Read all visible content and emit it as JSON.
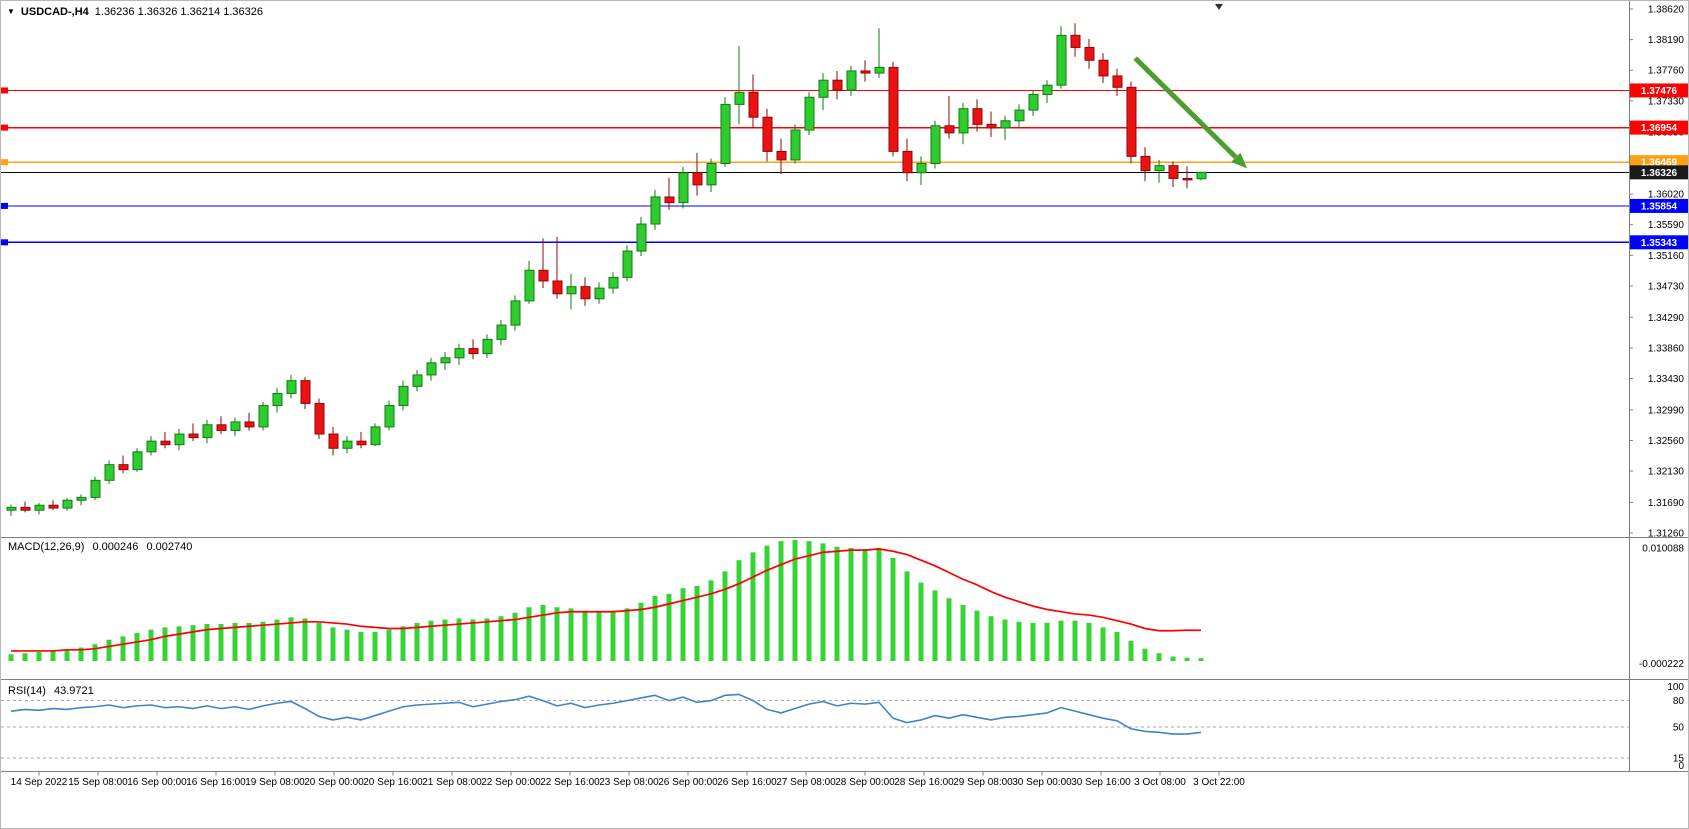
{
  "window": {
    "dropdown_icon": "▼",
    "symbol_timeframe": "USDCAD-,H4",
    "ohlc": "1.36236 1.36326 1.36214 1.36326"
  },
  "colors": {
    "background": "#ffffff",
    "up_body": "#2ecc2e",
    "up_border": "#127a12",
    "down_body": "#ea1212",
    "down_border": "#8f0808",
    "macd_hist": "#35d435",
    "macd_signal": "#ff0000",
    "rsi_line": "#3d85c8",
    "resistance": "#ff0000",
    "pivot": "#ffa013",
    "support": "#0000ff",
    "current_price_line": "#000000",
    "current_price_tag_bg": "#1a1a1a",
    "arrow": "#4e9d2f",
    "separator": "#7f7f7f",
    "axis_text": "#000000",
    "level_dash": "#a8a8a8"
  },
  "price_axis_ticks": [
    "1.38620",
    "1.38190",
    "1.37760",
    "1.37330",
    "1.36890",
    "1.36460",
    "1.36020",
    "1.35590",
    "1.35160",
    "1.34730",
    "1.34290",
    "1.33860",
    "1.33430",
    "1.32990",
    "1.32560",
    "1.32130",
    "1.31690",
    "1.31260"
  ],
  "time_axis_labels": [
    "14 Sep 2022",
    "15 Sep 08:00",
    "16 Sep 00:00",
    "16 Sep 16:00",
    "19 Sep 08:00",
    "20 Sep 00:00",
    "20 Sep 16:00",
    "21 Sep 08:00",
    "22 Sep 00:00",
    "22 Sep 16:00",
    "23 Sep 08:00",
    "26 Sep 00:00",
    "26 Sep 16:00",
    "27 Sep 08:00",
    "28 Sep 00:00",
    "28 Sep 16:00",
    "29 Sep 08:00",
    "30 Sep 00:00",
    "30 Sep 16:00",
    "3 Oct 08:00",
    "3 Oct 22:00"
  ],
  "hlines": [
    {
      "label": "1.37476",
      "price": 1.37476,
      "color": "#ff0000"
    },
    {
      "label": "1.36954",
      "price": 1.36954,
      "color": "#ff0000"
    },
    {
      "label": "1.36469",
      "price": 1.36469,
      "color": "#ffa013"
    },
    {
      "label": "1.35854",
      "price": 1.35854,
      "color": "#0000ff"
    },
    {
      "label": "1.35343",
      "price": 1.35343,
      "color": "#0000ff"
    }
  ],
  "current_price": {
    "label": "1.36326",
    "price": 1.36326
  },
  "indicators": {
    "macd": {
      "name": "MACD(12,26,9)",
      "value": "0.000246",
      "signal_value": "0.002740",
      "axis_max": "0.010088",
      "axis_min": "-0.000222"
    },
    "rsi": {
      "name": "RSI(14)",
      "value": "43.9721",
      "axis_labels": [
        "100",
        "80",
        "50",
        "15",
        "0"
      ],
      "levels": [
        80,
        50,
        15
      ]
    }
  },
  "annotations": {
    "trend_arrow": {
      "from_bar": 80.3,
      "from_price": 1.3793,
      "to_bar": 88.3,
      "to_price": 1.3638
    }
  },
  "chart_data": [
    {
      "type": "candlestick",
      "title": "USDCAD- H4 price pane",
      "x_range": "H4 bars, 14 Sep 2022 00:00 - 3 Oct 2022 22:00",
      "ylim": [
        1.3126,
        1.3862
      ],
      "candles_format": [
        "open",
        "high",
        "low",
        "close"
      ],
      "candles": [
        [
          1.3158,
          1.3166,
          1.315,
          1.3162
        ],
        [
          1.3162,
          1.317,
          1.3155,
          1.3158
        ],
        [
          1.3158,
          1.3168,
          1.3152,
          1.3165
        ],
        [
          1.3165,
          1.3172,
          1.3158,
          1.3161
        ],
        [
          1.3161,
          1.3175,
          1.3157,
          1.3172
        ],
        [
          1.3172,
          1.318,
          1.3165,
          1.3176
        ],
        [
          1.3176,
          1.3205,
          1.3172,
          1.32
        ],
        [
          1.32,
          1.3228,
          1.3195,
          1.3222
        ],
        [
          1.3222,
          1.3235,
          1.321,
          1.3215
        ],
        [
          1.3215,
          1.3245,
          1.3212,
          1.324
        ],
        [
          1.324,
          1.3262,
          1.3235,
          1.3255
        ],
        [
          1.3255,
          1.3268,
          1.3245,
          1.325
        ],
        [
          1.325,
          1.3272,
          1.3242,
          1.3265
        ],
        [
          1.3265,
          1.328,
          1.3255,
          1.326
        ],
        [
          1.326,
          1.3285,
          1.3252,
          1.3278
        ],
        [
          1.3278,
          1.329,
          1.3265,
          1.327
        ],
        [
          1.327,
          1.3288,
          1.3262,
          1.3282
        ],
        [
          1.3282,
          1.3295,
          1.327,
          1.3275
        ],
        [
          1.3275,
          1.331,
          1.327,
          1.3305
        ],
        [
          1.3305,
          1.333,
          1.3295,
          1.3322
        ],
        [
          1.3322,
          1.3348,
          1.3315,
          1.334
        ],
        [
          1.334,
          1.3345,
          1.33,
          1.3308
        ],
        [
          1.3308,
          1.3315,
          1.3258,
          1.3265
        ],
        [
          1.3265,
          1.3275,
          1.3235,
          1.3245
        ],
        [
          1.3245,
          1.3262,
          1.3238,
          1.3255
        ],
        [
          1.3255,
          1.3268,
          1.3245,
          1.325
        ],
        [
          1.325,
          1.328,
          1.3248,
          1.3275
        ],
        [
          1.3275,
          1.3312,
          1.327,
          1.3305
        ],
        [
          1.3305,
          1.334,
          1.3298,
          1.3332
        ],
        [
          1.3332,
          1.3355,
          1.3325,
          1.3348
        ],
        [
          1.3348,
          1.3372,
          1.334,
          1.3365
        ],
        [
          1.3365,
          1.338,
          1.3355,
          1.3372
        ],
        [
          1.3372,
          1.3392,
          1.3362,
          1.3385
        ],
        [
          1.3385,
          1.3398,
          1.337,
          1.3378
        ],
        [
          1.3378,
          1.3405,
          1.3372,
          1.3398
        ],
        [
          1.3398,
          1.3425,
          1.339,
          1.3418
        ],
        [
          1.3418,
          1.346,
          1.341,
          1.3452
        ],
        [
          1.3452,
          1.3508,
          1.3448,
          1.3495
        ],
        [
          1.3495,
          1.354,
          1.347,
          1.348
        ],
        [
          1.348,
          1.3542,
          1.3455,
          1.3462
        ],
        [
          1.3462,
          1.349,
          1.344,
          1.3472
        ],
        [
          1.3472,
          1.3485,
          1.3445,
          1.3455
        ],
        [
          1.3455,
          1.3478,
          1.3448,
          1.347
        ],
        [
          1.347,
          1.3492,
          1.3462,
          1.3485
        ],
        [
          1.3485,
          1.353,
          1.348,
          1.3522
        ],
        [
          1.3522,
          1.357,
          1.3515,
          1.356
        ],
        [
          1.356,
          1.3608,
          1.3552,
          1.3598
        ],
        [
          1.3598,
          1.3625,
          1.358,
          1.359
        ],
        [
          1.359,
          1.364,
          1.3582,
          1.3632
        ],
        [
          1.3632,
          1.366,
          1.36,
          1.3615
        ],
        [
          1.3615,
          1.3652,
          1.3605,
          1.3645
        ],
        [
          1.3645,
          1.3738,
          1.364,
          1.3728
        ],
        [
          1.3728,
          1.381,
          1.37,
          1.3745
        ],
        [
          1.3745,
          1.377,
          1.3695,
          1.371
        ],
        [
          1.371,
          1.3722,
          1.3648,
          1.3662
        ],
        [
          1.3662,
          1.368,
          1.363,
          1.365
        ],
        [
          1.365,
          1.37,
          1.3645,
          1.3692
        ],
        [
          1.3692,
          1.3745,
          1.3685,
          1.3738
        ],
        [
          1.3738,
          1.3772,
          1.372,
          1.3762
        ],
        [
          1.3762,
          1.3775,
          1.3735,
          1.3748
        ],
        [
          1.3748,
          1.3782,
          1.374,
          1.3775
        ],
        [
          1.3775,
          1.379,
          1.376,
          1.3772
        ],
        [
          1.3772,
          1.3835,
          1.3765,
          1.378
        ],
        [
          1.378,
          1.3788,
          1.3655,
          1.3662
        ],
        [
          1.3662,
          1.368,
          1.362,
          1.3632
        ],
        [
          1.3632,
          1.3655,
          1.3615,
          1.3645
        ],
        [
          1.3645,
          1.3705,
          1.3638,
          1.3698
        ],
        [
          1.3698,
          1.374,
          1.368,
          1.3688
        ],
        [
          1.3688,
          1.373,
          1.3672,
          1.3722
        ],
        [
          1.3722,
          1.3735,
          1.369,
          1.37
        ],
        [
          1.37,
          1.3718,
          1.3682,
          1.3695
        ],
        [
          1.3695,
          1.3712,
          1.3678,
          1.3705
        ],
        [
          1.3705,
          1.3728,
          1.3695,
          1.372
        ],
        [
          1.372,
          1.3748,
          1.3712,
          1.3742
        ],
        [
          1.3742,
          1.3762,
          1.373,
          1.3755
        ],
        [
          1.3755,
          1.3838,
          1.375,
          1.3825
        ],
        [
          1.3825,
          1.3842,
          1.3795,
          1.3808
        ],
        [
          1.3808,
          1.382,
          1.3778,
          1.379
        ],
        [
          1.379,
          1.38,
          1.3758,
          1.3768
        ],
        [
          1.3768,
          1.3778,
          1.374,
          1.3752
        ],
        [
          1.3752,
          1.376,
          1.3645,
          1.3655
        ],
        [
          1.3655,
          1.3668,
          1.362,
          1.3635
        ],
        [
          1.3635,
          1.365,
          1.3618,
          1.3642
        ],
        [
          1.3642,
          1.3648,
          1.3612,
          1.3624
        ],
        [
          1.3624,
          1.3641,
          1.361,
          1.36236
        ],
        [
          1.36236,
          1.36326,
          1.36214,
          1.36326
        ]
      ]
    },
    {
      "type": "bar",
      "name": "MACD(12,26,9)",
      "ylim": [
        -0.000222,
        0.010088
      ],
      "values": [
        0.0006,
        0.0007,
        0.0008,
        0.0009,
        0.001,
        0.0012,
        0.0015,
        0.0019,
        0.0022,
        0.0025,
        0.0028,
        0.003,
        0.0031,
        0.0032,
        0.0033,
        0.0033,
        0.0034,
        0.0034,
        0.0035,
        0.0037,
        0.0039,
        0.0038,
        0.0034,
        0.003,
        0.0028,
        0.0026,
        0.0026,
        0.0028,
        0.0031,
        0.0034,
        0.0036,
        0.0037,
        0.0038,
        0.0037,
        0.0038,
        0.004,
        0.0043,
        0.0048,
        0.005,
        0.0048,
        0.0047,
        0.0045,
        0.0044,
        0.0045,
        0.0047,
        0.0052,
        0.0058,
        0.006,
        0.0065,
        0.0067,
        0.0072,
        0.008,
        0.009,
        0.0097,
        0.0103,
        0.0107,
        0.0108,
        0.0107,
        0.0105,
        0.0102,
        0.0101,
        0.01,
        0.0101,
        0.0092,
        0.008,
        0.007,
        0.0063,
        0.0056,
        0.005,
        0.0045,
        0.004,
        0.0037,
        0.0035,
        0.0034,
        0.0034,
        0.0036,
        0.0036,
        0.0034,
        0.003,
        0.0026,
        0.0018,
        0.0011,
        0.0007,
        0.0004,
        0.0003,
        0.000246
      ],
      "signal": [
        0.0009,
        0.0009,
        0.0009,
        0.0009,
        0.001,
        0.001,
        0.0011,
        0.0013,
        0.0015,
        0.0017,
        0.0019,
        0.0022,
        0.0024,
        0.0026,
        0.0028,
        0.0029,
        0.003,
        0.0031,
        0.0032,
        0.0033,
        0.0034,
        0.0035,
        0.0035,
        0.0034,
        0.0033,
        0.0031,
        0.003,
        0.0029,
        0.0029,
        0.003,
        0.0031,
        0.0032,
        0.0033,
        0.0034,
        0.0035,
        0.0036,
        0.0037,
        0.0039,
        0.0041,
        0.0043,
        0.0044,
        0.0044,
        0.0044,
        0.0044,
        0.0045,
        0.0046,
        0.0048,
        0.0051,
        0.0054,
        0.0057,
        0.006,
        0.0064,
        0.0069,
        0.0075,
        0.0081,
        0.0086,
        0.0091,
        0.0094,
        0.0097,
        0.0098,
        0.0099,
        0.0099,
        0.01,
        0.0098,
        0.0095,
        0.009,
        0.0085,
        0.0079,
        0.0073,
        0.0068,
        0.0062,
        0.0057,
        0.0053,
        0.0049,
        0.0046,
        0.0044,
        0.0042,
        0.0041,
        0.0039,
        0.0036,
        0.0033,
        0.0029,
        0.0027,
        0.0027,
        0.00275,
        0.00274
      ]
    },
    {
      "type": "line",
      "name": "RSI(14)",
      "ylim": [
        0,
        100
      ],
      "values": [
        68,
        70,
        69,
        71,
        70,
        72,
        73,
        75,
        72,
        74,
        75,
        72,
        73,
        71,
        74,
        71,
        73,
        70,
        74,
        77,
        79,
        71,
        62,
        58,
        61,
        58,
        63,
        68,
        73,
        75,
        76,
        77,
        78,
        73,
        76,
        79,
        81,
        85,
        80,
        74,
        77,
        72,
        75,
        77,
        80,
        83,
        86,
        80,
        84,
        78,
        80,
        86,
        87,
        80,
        70,
        66,
        71,
        76,
        79,
        74,
        77,
        76,
        78,
        60,
        55,
        58,
        63,
        60,
        64,
        61,
        58,
        61,
        62,
        64,
        66,
        72,
        68,
        64,
        60,
        57,
        48,
        45,
        44,
        42,
        42,
        43.97
      ]
    }
  ]
}
